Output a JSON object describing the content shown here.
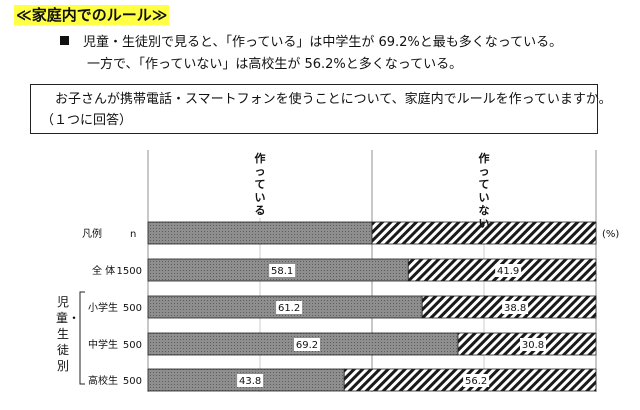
{
  "heading": "≪家庭内でのルール≫",
  "bullets": [
    "児童・生徒別で見ると、「作っている」は中学生が 69.2%と最も多くなっている。",
    "一方で、「作っていない」は高校生が 56.2%と多くなっている。"
  ],
  "question": {
    "line1": "お子さんが携帯電話・スマートフォンを使うことについて、家庭内でルールを作っていますか。",
    "line2": "（１つに回答）"
  },
  "group_label": "児童・生徒別",
  "chart_data": {
    "type": "bar",
    "orientation": "horizontal",
    "stacked": true,
    "unit": "(%)",
    "xlim": [
      0,
      100
    ],
    "legend_row": {
      "label": "凡例",
      "n_label": "n"
    },
    "series": [
      {
        "name": "作っている",
        "values": [
          58.1,
          61.2,
          69.2,
          43.8
        ],
        "pattern": "dotted-gray"
      },
      {
        "name": "作っていない",
        "values": [
          41.9,
          38.8,
          30.8,
          56.2
        ],
        "pattern": "diagonal-hatch"
      }
    ],
    "categories": [
      "全 体",
      "小学生",
      "中学生",
      "高校生"
    ],
    "n": [
      1500,
      500,
      500,
      500
    ],
    "legend_split": 50
  }
}
